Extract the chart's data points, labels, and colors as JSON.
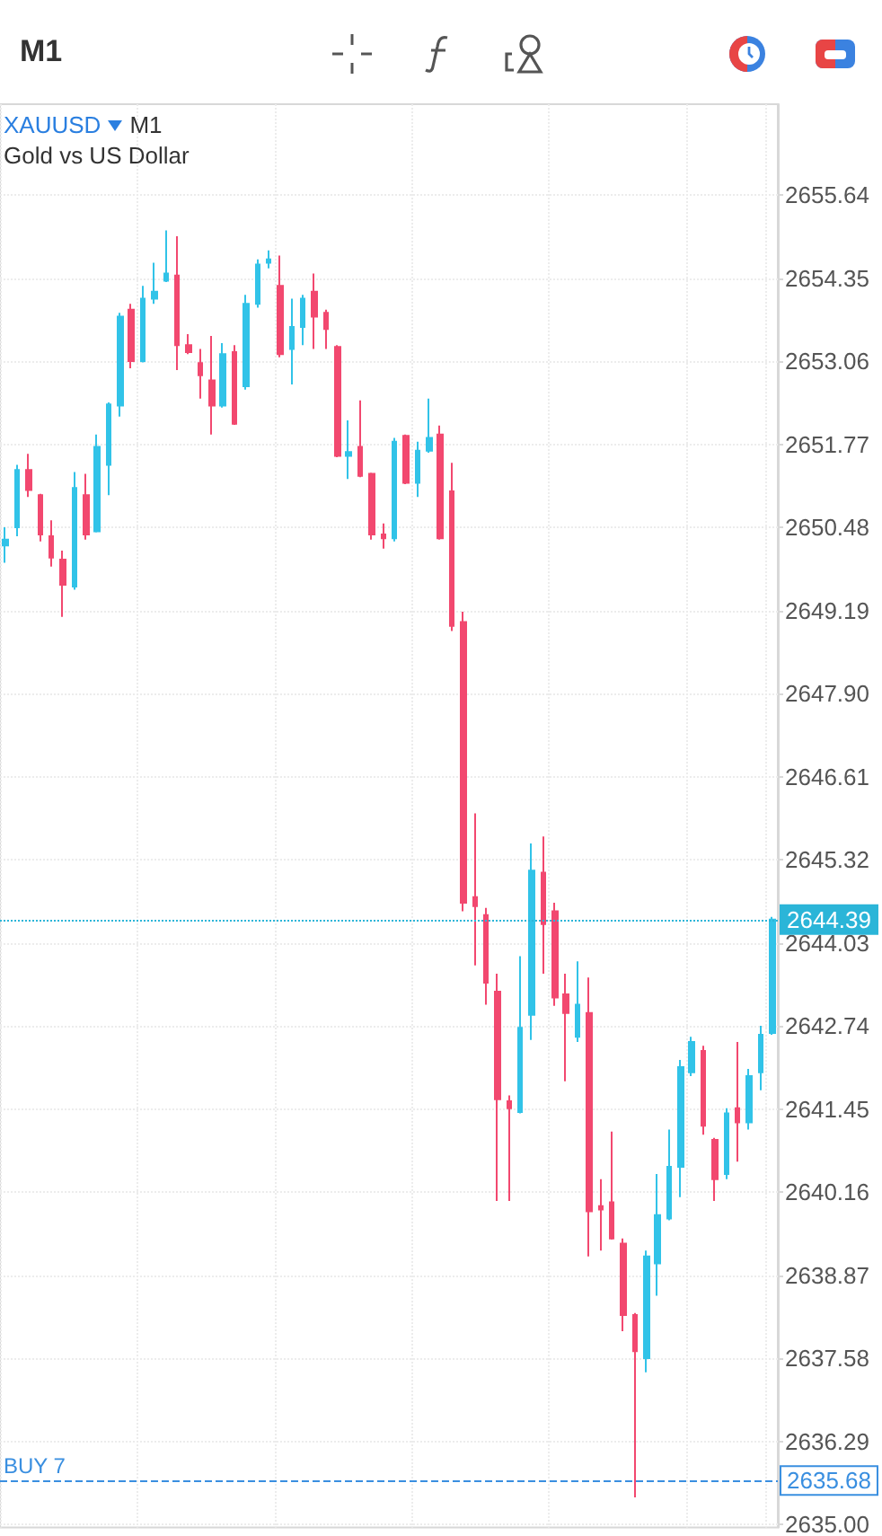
{
  "chart_data": {
    "type": "candlestick",
    "title": "M1",
    "annotations": [
      "XAUUSD",
      "M1",
      "Gold vs US Dollar",
      "2644.39",
      "2635.68"
    ],
    "categories": [
      null,
      null,
      null,
      null,
      null,
      null,
      null,
      null,
      null,
      null,
      null,
      null,
      null,
      null,
      null,
      null,
      null,
      null,
      null,
      null,
      null,
      null,
      null,
      null,
      null,
      null,
      null,
      null,
      null,
      null,
      null,
      null,
      null,
      null,
      null,
      null,
      null,
      null,
      null,
      null,
      null,
      null,
      null,
      null,
      null,
      null,
      null,
      null,
      null,
      null,
      null,
      null,
      null,
      null,
      null,
      null,
      null,
      null,
      null,
      null,
      null,
      null,
      null,
      null,
      null,
      null,
      null,
      null
    ],
    "ohlc": [
      [
        2650.2,
        2650.48,
        2649.93,
        2650.29
      ],
      [
        2650.48,
        2651.45,
        2650.34,
        2651.37
      ],
      [
        2651.37,
        2651.62,
        2650.95,
        2651.06
      ],
      [
        2650.98,
        2651.0,
        2650.26,
        2650.37
      ],
      [
        2650.34,
        2650.59,
        2649.87,
        2650.01
      ],
      [
        2649.98,
        2650.12,
        2649.09,
        2649.59
      ],
      [
        2649.56,
        2651.34,
        2649.51,
        2651.09
      ],
      [
        2650.98,
        2651.31,
        2650.29,
        2650.37
      ],
      [
        2650.42,
        2651.92,
        2650.4,
        2651.73
      ],
      [
        2651.45,
        2652.42,
        2650.98,
        2652.39
      ],
      [
        2652.37,
        2653.81,
        2652.2,
        2653.75
      ],
      [
        2653.86,
        2653.95,
        2652.95,
        2653.06
      ],
      [
        2653.06,
        2654.23,
        2653.04,
        2654.03
      ],
      [
        2654.03,
        2654.59,
        2653.95,
        2654.14
      ],
      [
        2654.31,
        2655.09,
        2654.29,
        2654.42
      ],
      [
        2654.39,
        2655.0,
        2652.92,
        2653.31
      ],
      [
        2653.31,
        2653.48,
        2653.17,
        2653.2
      ],
      [
        2653.03,
        2653.25,
        2652.48,
        2652.84
      ],
      [
        2652.76,
        2653.45,
        2651.92,
        2652.37
      ],
      [
        2652.37,
        2653.34,
        2652.34,
        2653.17
      ],
      [
        2653.2,
        2653.31,
        2652.07,
        2652.09
      ],
      [
        2652.67,
        2654.09,
        2652.62,
        2653.95
      ],
      [
        2653.95,
        2654.64,
        2653.89,
        2654.56
      ],
      [
        2654.59,
        2654.78,
        2654.5,
        2654.64
      ],
      [
        2654.23,
        2654.7,
        2653.12,
        2653.17
      ],
      [
        2653.25,
        2654.03,
        2652.7,
        2653.59
      ],
      [
        2653.59,
        2654.09,
        2653.31,
        2654.03
      ],
      [
        2654.14,
        2654.42,
        2653.25,
        2653.75
      ],
      [
        2653.81,
        2653.86,
        2653.25,
        2653.56
      ],
      [
        2653.28,
        2653.31,
        2651.57,
        2651.59
      ],
      [
        2651.59,
        2652.14,
        2651.23,
        2651.65
      ],
      [
        2651.73,
        2652.45,
        2651.26,
        2651.28
      ],
      [
        2651.31,
        2651.33,
        2650.29,
        2650.37
      ],
      [
        2650.37,
        2650.54,
        2650.15,
        2650.31
      ],
      [
        2650.31,
        2651.87,
        2650.26,
        2651.81
      ],
      [
        2651.9,
        2651.92,
        2651.15,
        2651.17
      ],
      [
        2651.17,
        2651.81,
        2650.95,
        2651.67
      ],
      [
        2651.67,
        2652.48,
        2651.64,
        2651.87
      ],
      [
        2651.92,
        2652.06,
        2650.29,
        2650.31
      ],
      [
        2651.04,
        2651.48,
        2648.87,
        2648.95
      ],
      [
        2649.01,
        2649.17,
        2644.52,
        2644.65
      ],
      [
        2644.74,
        2646.04,
        2643.68,
        2644.6
      ],
      [
        2644.46,
        2644.57,
        2643.07,
        2643.41
      ],
      [
        2643.27,
        2643.55,
        2640.02,
        2641.6
      ],
      [
        2641.57,
        2641.66,
        2640.02,
        2641.46
      ],
      [
        2641.4,
        2643.82,
        2641.38,
        2642.71
      ],
      [
        2642.91,
        2645.57,
        2642.52,
        2645.15
      ],
      [
        2645.12,
        2645.68,
        2643.55,
        2644.32
      ],
      [
        2644.52,
        2644.65,
        2643.05,
        2643.18
      ],
      [
        2643.23,
        2643.55,
        2641.88,
        2642.94
      ],
      [
        2642.57,
        2643.74,
        2642.49,
        2643.07
      ],
      [
        2642.94,
        2643.49,
        2639.16,
        2639.86
      ],
      [
        2639.94,
        2640.36,
        2639.25,
        2639.89
      ],
      [
        2640.0,
        2641.1,
        2639.42,
        2639.44
      ],
      [
        2639.36,
        2639.44,
        2638.0,
        2638.25
      ],
      [
        2638.25,
        2638.28,
        2635.42,
        2637.69
      ],
      [
        2637.58,
        2639.25,
        2637.36,
        2639.16
      ],
      [
        2639.05,
        2640.44,
        2638.55,
        2639.8
      ],
      [
        2639.75,
        2641.13,
        2639.72,
        2640.55
      ],
      [
        2640.55,
        2642.21,
        2640.08,
        2642.1
      ],
      [
        2642.02,
        2642.57,
        2641.96,
        2642.49
      ],
      [
        2642.35,
        2642.43,
        2641.05,
        2641.19
      ],
      [
        2640.97,
        2641.0,
        2640.02,
        2640.36
      ],
      [
        2640.44,
        2641.46,
        2640.36,
        2641.38
      ],
      [
        2641.46,
        2642.49,
        2640.63,
        2641.24
      ],
      [
        2641.24,
        2642.07,
        2641.13,
        2641.96
      ],
      [
        2642.02,
        2642.74,
        2641.74,
        2642.6
      ],
      [
        2642.63,
        2644.43,
        2642.6,
        2644.39
      ]
    ],
    "colors": [
      "#31c3e8",
      "#31c3e8",
      "#f2486f",
      "#f2486f",
      "#f2486f",
      "#f2486f",
      "#31c3e8",
      "#f2486f",
      "#31c3e8",
      "#31c3e8",
      "#31c3e8",
      "#f2486f",
      "#31c3e8",
      "#31c3e8",
      "#31c3e8",
      "#f2486f",
      "#f2486f",
      "#f2486f",
      "#f2486f",
      "#31c3e8",
      "#f2486f",
      "#31c3e8",
      "#31c3e8",
      "#31c3e8",
      "#f2486f",
      "#31c3e8",
      "#31c3e8",
      "#f2486f",
      "#f2486f",
      "#f2486f",
      "#31c3e8",
      "#f2486f",
      "#f2486f",
      "#f2486f",
      "#31c3e8",
      "#f2486f",
      "#31c3e8",
      "#31c3e8",
      "#f2486f",
      "#f2486f",
      "#f2486f",
      "#f2486f",
      "#f2486f",
      "#f2486f",
      "#f2486f",
      "#31c3e8",
      "#31c3e8",
      "#f2486f",
      "#f2486f",
      "#f2486f",
      "#31c3e8",
      "#f2486f",
      "#f2486f",
      "#f2486f",
      "#f2486f",
      "#f2486f",
      "#31c3e8",
      "#31c3e8",
      "#31c3e8",
      "#31c3e8",
      "#31c3e8",
      "#f2486f",
      "#f2486f",
      "#31c3e8",
      "#f2486f",
      "#31c3e8",
      "#31c3e8",
      "#31c3e8"
    ],
    "ylim": [
      2634.95,
      2657.05
    ],
    "yticks": [
      {
        "value": 2635,
        "label": "2635.00"
      },
      2636.29,
      2637.58,
      2638.87,
      2640.16,
      2641.45,
      2642.74,
      2644.03,
      2645.32,
      2646.61,
      {
        "value": 2647.9,
        "label": "2647.90"
      },
      2649.19,
      2650.48,
      2651.77,
      2653.06,
      2654.35,
      2655.64
    ],
    "ref_lines": [
      {
        "axis": "y",
        "value": 2644.39,
        "color": "#2bb5d8",
        "line_style": "dotted"
      },
      {
        "axis": "y",
        "value": 2635.68,
        "label": "BUY 7",
        "color": "#3a8fe0",
        "line_style": "dashed"
      }
    ],
    "grid": true
  }
}
